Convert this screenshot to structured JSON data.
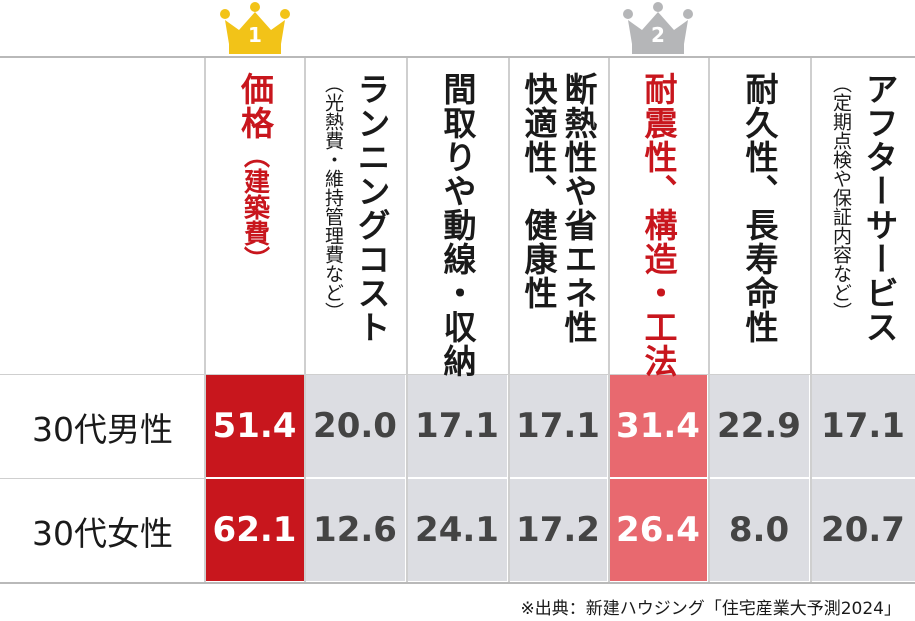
{
  "colors": {
    "highlight_1_cell": "#c8161d",
    "highlight_2_cell": "#e8696f",
    "default_cell": "#dcdde2",
    "highlight_text": "#c8161d",
    "crown_gold": "#f2c318",
    "crown_silver": "#b5b6b8"
  },
  "rank_badges": [
    {
      "rank": "1",
      "column": 0,
      "color": "#f2c318"
    },
    {
      "rank": "2",
      "column": 4,
      "color": "#b5b6b8"
    }
  ],
  "chart_data": {
    "type": "table",
    "columns": [
      {
        "label": "価格",
        "sub": "（建築費）",
        "highlight": 1
      },
      {
        "label": "ランニングコスト",
        "sub": "（光熱費・維持管理費など）",
        "highlight": 0
      },
      {
        "label": "間取りや動線・収納",
        "sub": "",
        "highlight": 0
      },
      {
        "label": "断熱性や省エネ性\n快適性、健康性",
        "sub": "",
        "highlight": 0
      },
      {
        "label": "耐震性、構造・工法",
        "sub": "",
        "highlight": 2
      },
      {
        "label": "耐久性、長寿命性",
        "sub": "",
        "highlight": 0
      },
      {
        "label": "アフターサービス",
        "sub": "（定期点検や保証内容など）",
        "highlight": 0
      }
    ],
    "rows": [
      {
        "label": "30代男性",
        "values": [
          "51.4",
          "20.0",
          "17.1",
          "17.1",
          "31.4",
          "22.9",
          "17.1"
        ]
      },
      {
        "label": "30代女性",
        "values": [
          "62.1",
          "12.6",
          "24.1",
          "17.2",
          "26.4",
          "8.0",
          "20.7"
        ]
      }
    ]
  },
  "source_note": "※出典：新建ハウジング「住宅産業大予測2024」"
}
